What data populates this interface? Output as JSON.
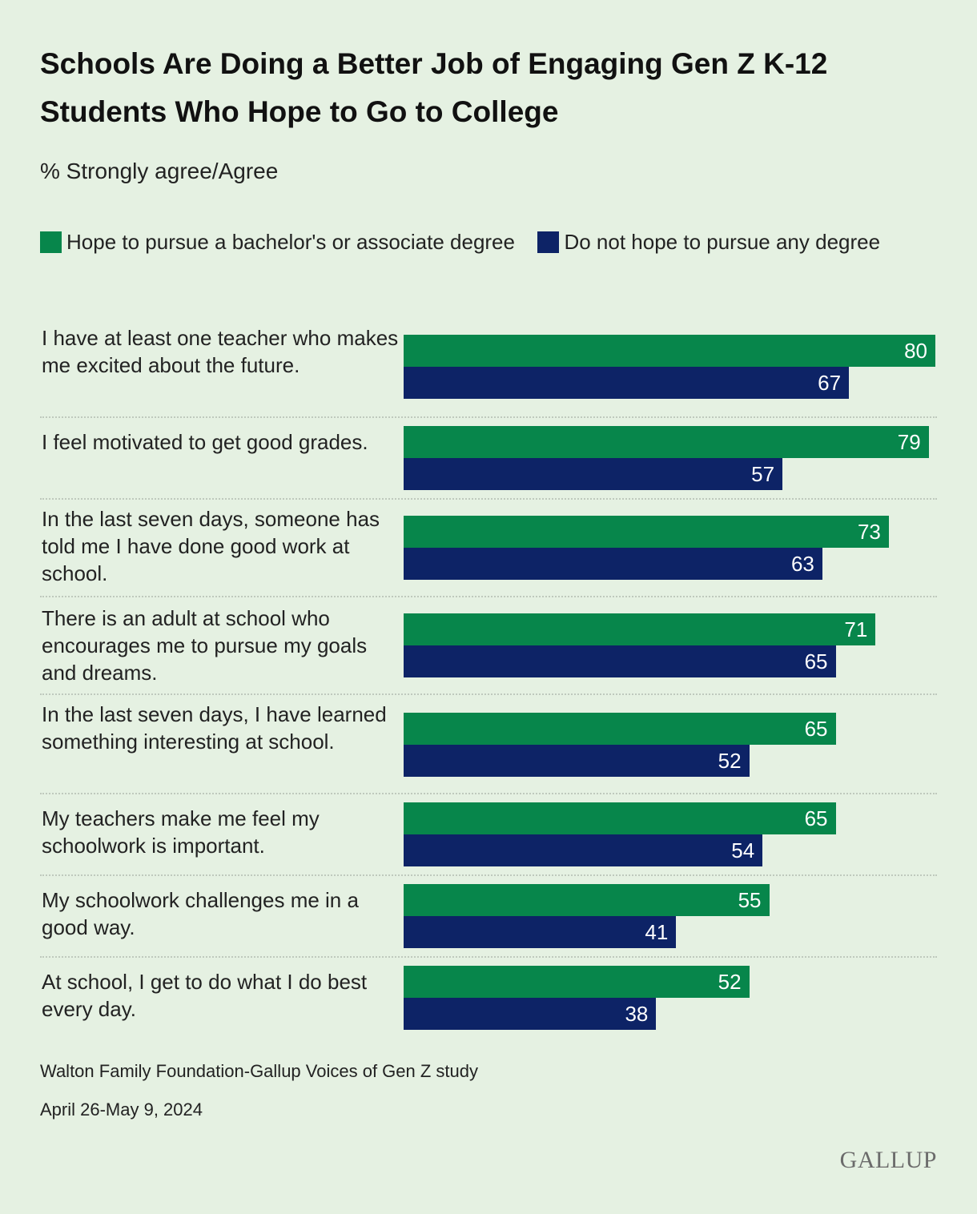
{
  "chart_data": {
    "type": "bar",
    "orientation": "horizontal",
    "title": "Schools Are Doing a Better Job of Engaging Gen Z K-12 Students Who Hope to Go to College",
    "subtitle": "% Strongly agree/Agree",
    "legend": "top",
    "grid": false,
    "xlim": [
      0,
      80
    ],
    "categories": [
      "I have at least one teacher who makes me excited about the future.",
      "I feel motivated to get good grades.",
      "In the last seven days, someone has told me I have done good work at school.",
      "There is an adult at school who encourages me to pursue my goals and dreams.",
      "In the last seven days, I have learned something interesting at school.",
      "My teachers make me feel my schoolwork is important.",
      "My schoolwork challenges me in a good way.",
      "At school, I get to do what I do best every day."
    ],
    "series": [
      {
        "name": "Hope to pursue a bachelor's or associate degree",
        "color": "#07864b",
        "values": [
          80,
          79,
          73,
          71,
          65,
          65,
          55,
          52
        ]
      },
      {
        "name": "Do not hope to pursue any degree",
        "color": "#0d2366",
        "values": [
          67,
          57,
          63,
          65,
          52,
          54,
          41,
          38
        ]
      }
    ]
  },
  "source": {
    "line1": "Walton Family Foundation-Gallup Voices of Gen Z study",
    "line2": "April 26-May 9, 2024"
  },
  "logo": "GALLUP",
  "colors": {
    "background": "#e5f1e2"
  }
}
